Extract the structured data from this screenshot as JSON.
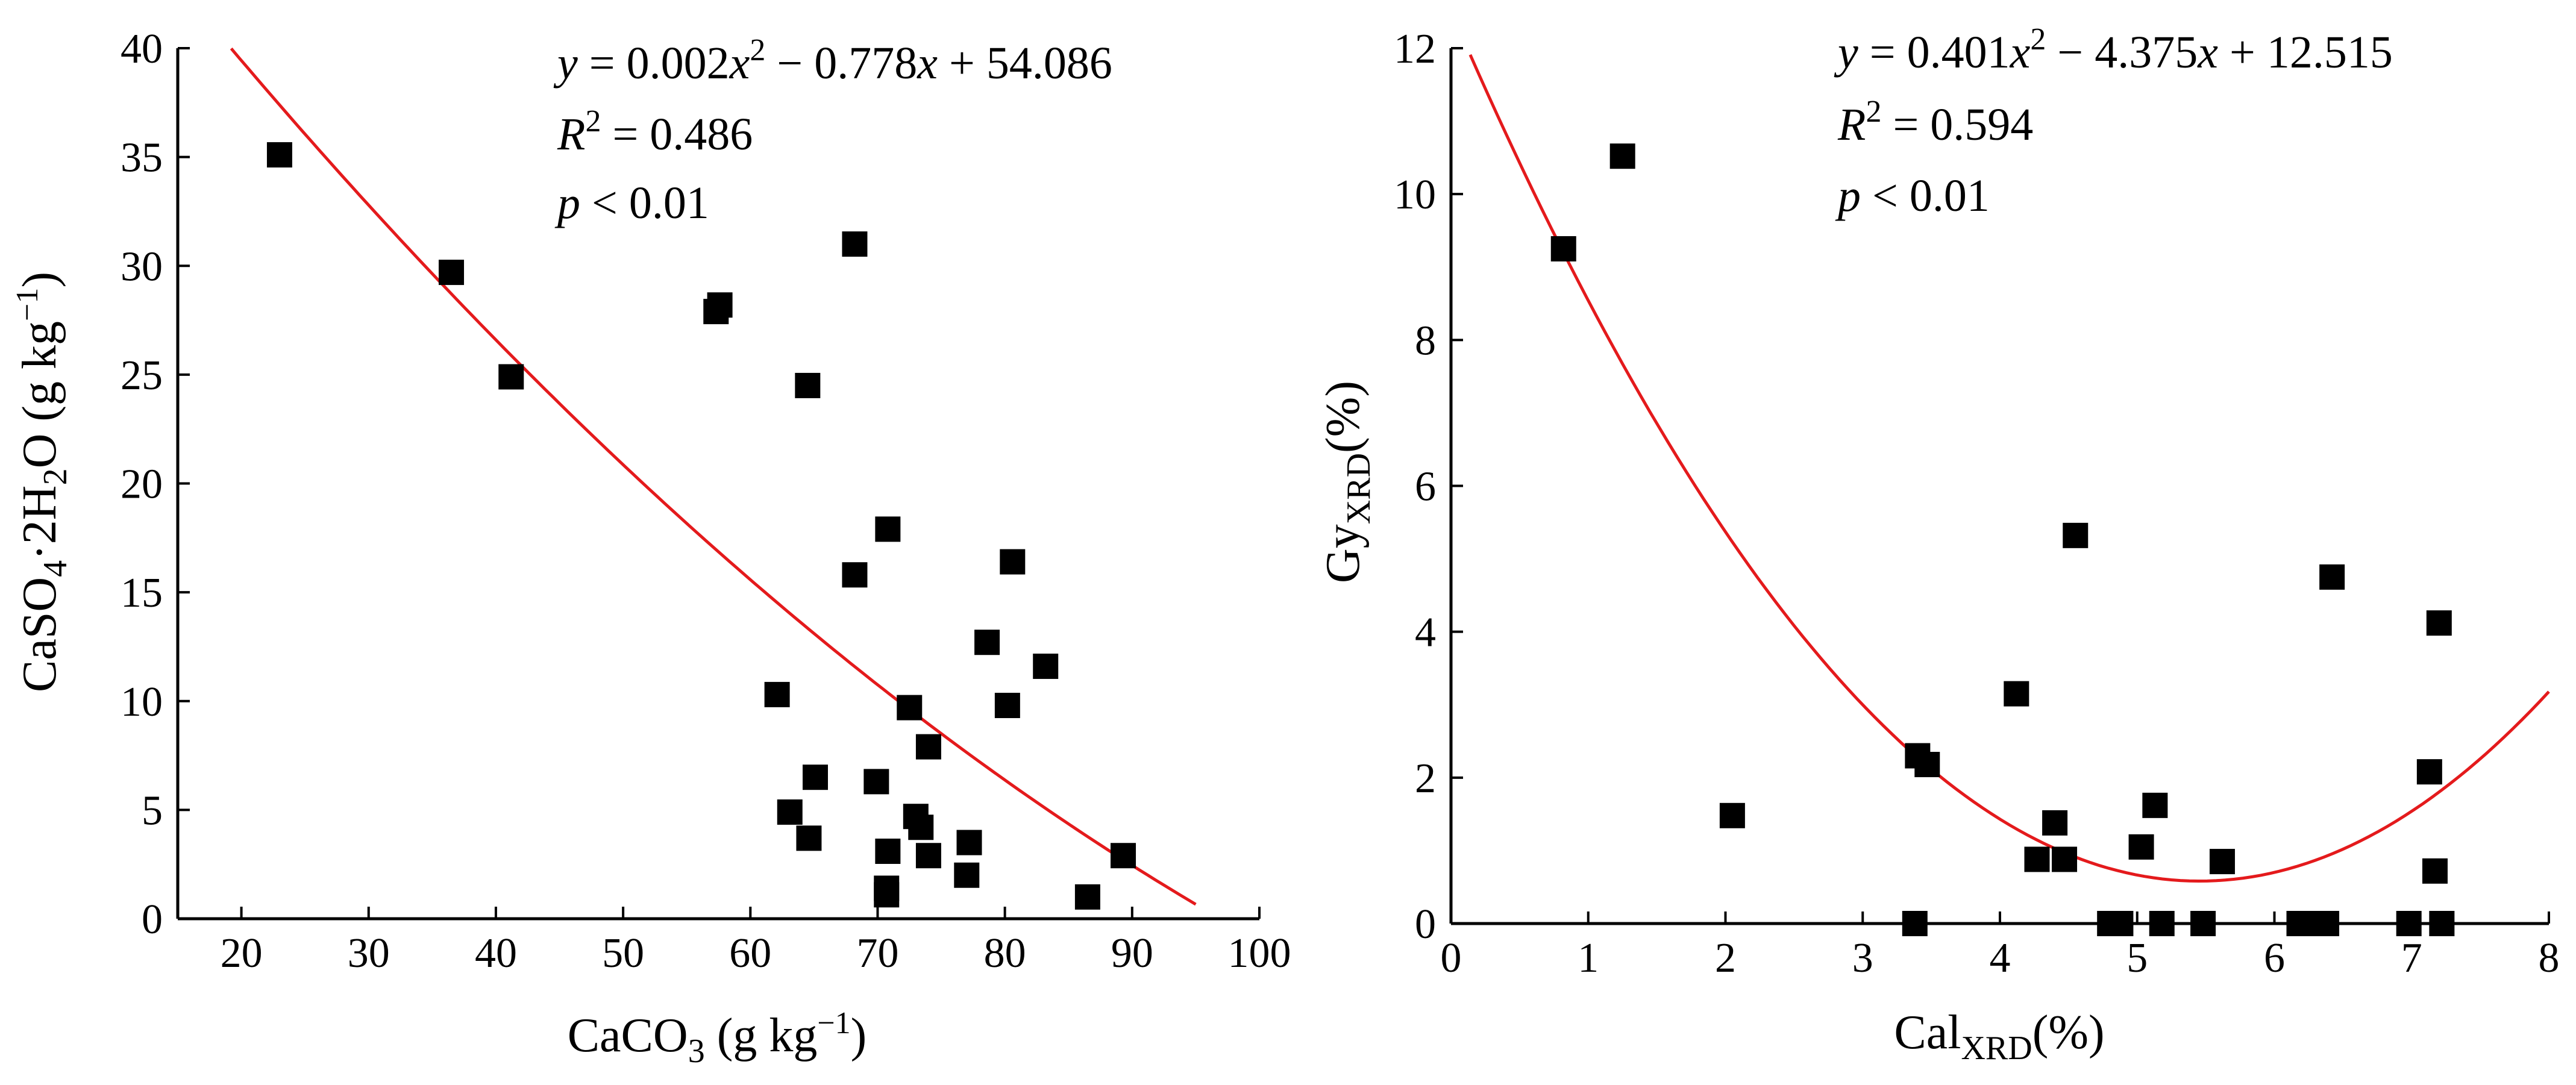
{
  "chart_data": [
    {
      "type": "scatter",
      "xlabel": "CaCO",
      "xlabel_sub": "3",
      "xlabel_unit": " (g kg",
      "xlabel_exp": "−1",
      "xlabel_close": ")",
      "ylabel_a": "CaSO",
      "ylabel_sub1": "4",
      "ylabel_b": "·2H",
      "ylabel_sub2": "2",
      "ylabel_c": "O (g kg",
      "ylabel_exp": "−1",
      "ylabel_close": ")",
      "xlim": [
        15,
        100
      ],
      "ylim": [
        0,
        40
      ],
      "xticks": [
        20,
        30,
        40,
        50,
        60,
        70,
        80,
        90,
        100
      ],
      "yticks": [
        0,
        5,
        10,
        15,
        20,
        25,
        30,
        35,
        40
      ],
      "equation": {
        "y": "y",
        "eq1": " = 0.002",
        "x1": "x",
        "exp": "2",
        "eq2": " − 0.778",
        "x2": "x",
        "eq3": " + 54.086"
      },
      "r2": {
        "r": "R",
        "exp": "2",
        "val": " = 0.486"
      },
      "p": {
        "p": "p",
        "val": " < 0.01"
      },
      "fit": {
        "a": 0.00227,
        "b": -0.778,
        "c": 54.086,
        "x_range": [
          19.2,
          95
        ],
        "color": "#e41a1c"
      },
      "points": [
        [
          23,
          35.1
        ],
        [
          36.5,
          29.7
        ],
        [
          41.2,
          24.9
        ],
        [
          57.3,
          27.9
        ],
        [
          57.6,
          28.2
        ],
        [
          64.5,
          24.5
        ],
        [
          68.2,
          31.0
        ],
        [
          70.8,
          17.9
        ],
        [
          68.2,
          15.8
        ],
        [
          80.6,
          16.4
        ],
        [
          78.6,
          12.7
        ],
        [
          83.2,
          11.6
        ],
        [
          62.1,
          10.3
        ],
        [
          72.5,
          9.7
        ],
        [
          80.2,
          9.8
        ],
        [
          74.0,
          7.9
        ],
        [
          65.1,
          6.5
        ],
        [
          69.9,
          6.3
        ],
        [
          63.1,
          4.9
        ],
        [
          64.6,
          3.7
        ],
        [
          73.0,
          4.7
        ],
        [
          73.4,
          4.2
        ],
        [
          77.2,
          3.5
        ],
        [
          70.8,
          3.1
        ],
        [
          74.0,
          2.9
        ],
        [
          77.0,
          2.0
        ],
        [
          70.7,
          1.4
        ],
        [
          70.7,
          1.1
        ],
        [
          86.5,
          1.0
        ],
        [
          89.3,
          2.9
        ]
      ]
    },
    {
      "type": "scatter",
      "xlabel": "Cal",
      "xlabel_sub": "XRD",
      "xlabel_unit": "(%)",
      "ylabel_a": "Gy",
      "ylabel_sub1": "XRD",
      "ylabel_b": "(%)",
      "xlim": [
        0,
        8
      ],
      "ylim": [
        0,
        12
      ],
      "xticks": [
        0,
        1,
        2,
        3,
        4,
        5,
        6,
        7,
        8
      ],
      "yticks": [
        0,
        2,
        4,
        6,
        8,
        10,
        12
      ],
      "equation": {
        "y": "y",
        "eq1": " = 0.401",
        "x1": "x",
        "exp": "2",
        "eq2": " − 4.375",
        "x2": "x",
        "eq3": " + 12.515"
      },
      "r2": {
        "r": "R",
        "exp": "2",
        "val": " = 0.594"
      },
      "p": {
        "p": "p",
        "val": " < 0.01"
      },
      "fit": {
        "a": 0.401,
        "b": -4.375,
        "c": 12.515,
        "x_range": [
          0.14,
          8
        ],
        "color": "#e41a1c"
      },
      "points": [
        [
          0.82,
          9.25
        ],
        [
          1.25,
          10.52
        ],
        [
          2.05,
          1.48
        ],
        [
          3.4,
          2.3
        ],
        [
          3.47,
          2.18
        ],
        [
          3.38,
          0.0
        ],
        [
          4.12,
          3.15
        ],
        [
          4.55,
          5.32
        ],
        [
          4.4,
          1.38
        ],
        [
          4.27,
          0.88
        ],
        [
          4.47,
          0.88
        ],
        [
          4.8,
          0.0
        ],
        [
          4.88,
          0.0
        ],
        [
          5.03,
          1.05
        ],
        [
          5.13,
          1.62
        ],
        [
          5.18,
          0.0
        ],
        [
          5.48,
          0.0
        ],
        [
          5.62,
          0.85
        ],
        [
          6.18,
          0.0
        ],
        [
          6.28,
          0.0
        ],
        [
          6.38,
          0.0
        ],
        [
          6.42,
          4.75
        ],
        [
          6.98,
          0.0
        ],
        [
          7.13,
          2.08
        ],
        [
          7.17,
          0.72
        ],
        [
          7.2,
          4.12
        ],
        [
          7.22,
          0.0
        ]
      ]
    }
  ]
}
